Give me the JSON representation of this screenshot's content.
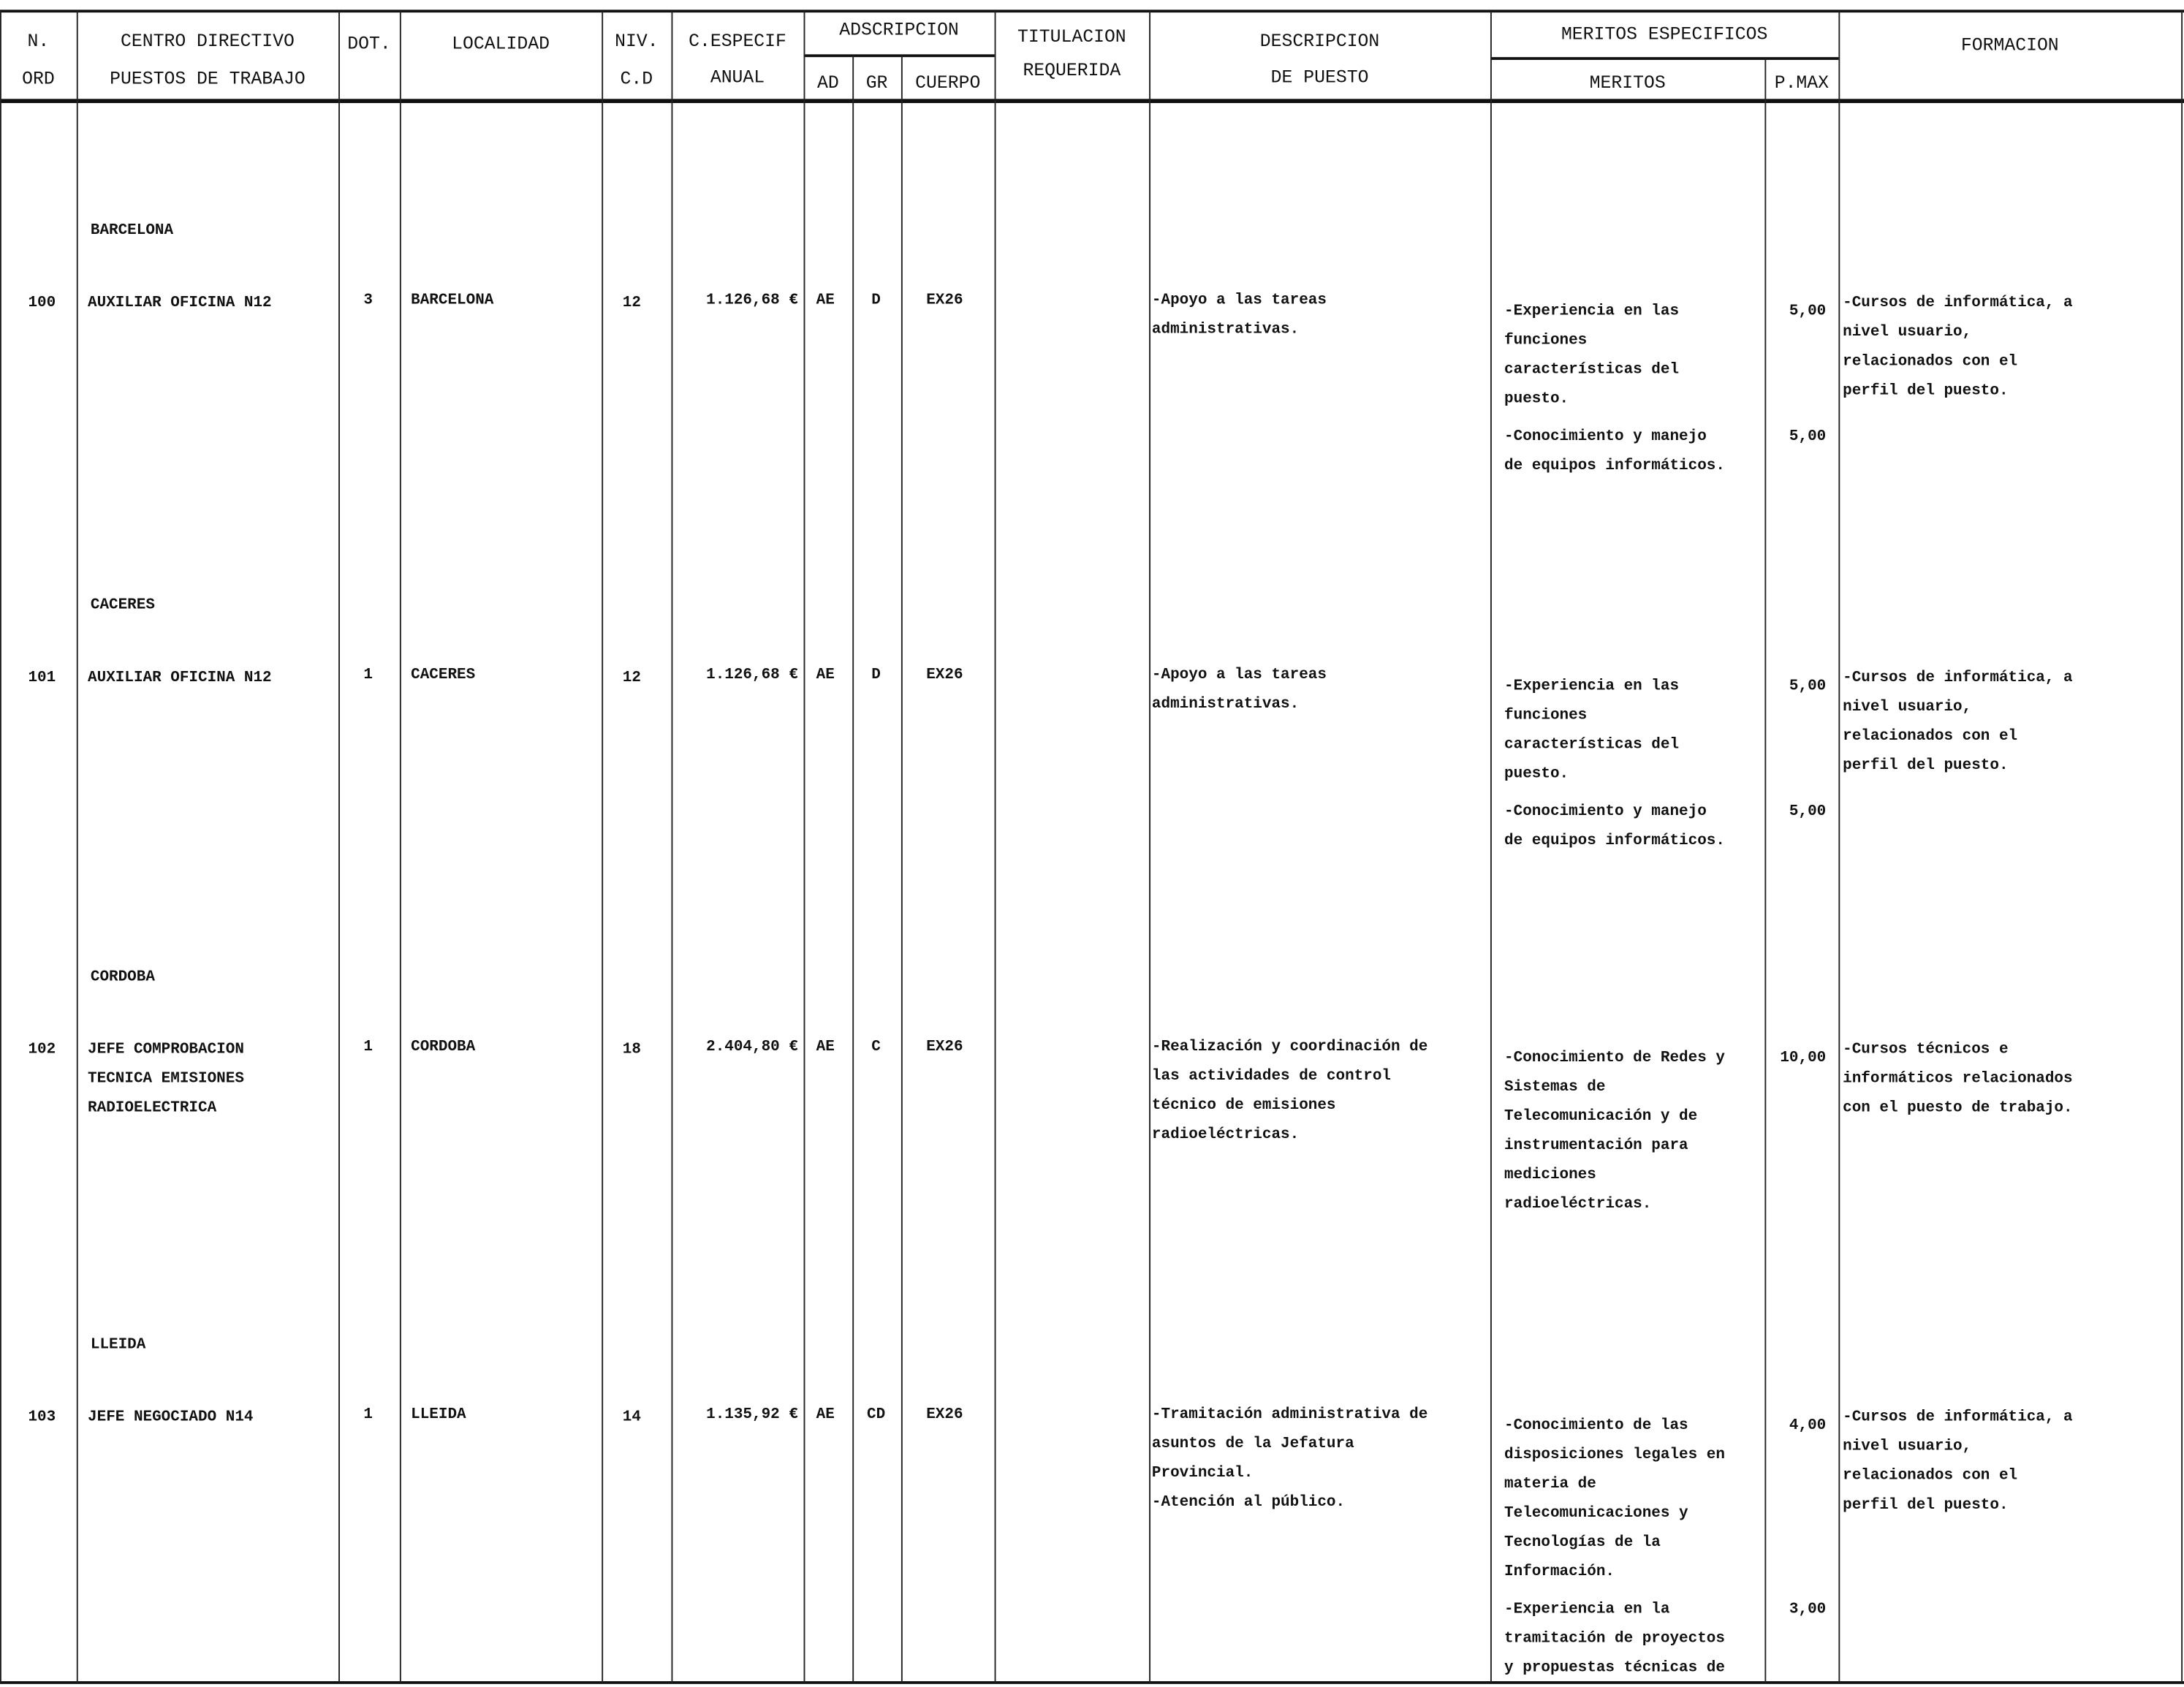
{
  "header": {
    "n_ord_1": "N.",
    "n_ord_2": "ORD",
    "centro_1": "CENTRO DIRECTIVO",
    "centro_2": "PUESTOS DE TRABAJO",
    "dot": "DOT.",
    "localidad": "LOCALIDAD",
    "niv_1": "NIV.",
    "niv_2": "C.D",
    "cesp_1": "C.ESPECIF",
    "cesp_2": "ANUAL",
    "adscripcion": "ADSCRIPCION",
    "ad": "AD",
    "gr": "GR",
    "cuerpo": "CUERPO",
    "titulacion_1": "TITULACION",
    "titulacion_2": "REQUERIDA",
    "descripcion_1": "DESCRIPCION",
    "descripcion_2": "DE PUESTO",
    "meritos_esp": "MERITOS ESPECIFICOS",
    "meritos": "MERITOS",
    "pmax": "P.MAX",
    "formacion": "FORMACION"
  },
  "rows": [
    {
      "province": "BARCELONA",
      "n": "100",
      "puesto": [
        "AUXILIAR OFICINA N12"
      ],
      "dot": "3",
      "localidad": "BARCELONA",
      "niv": "12",
      "cesp": "1.126,68 €",
      "ad": "AE",
      "gr": "D",
      "cuerpo": "EX26",
      "descripcion": [
        "-Apoyo a las tareas",
        "administrativas."
      ],
      "meritos": [
        {
          "lines": [
            "-Experiencia en las",
            "funciones",
            "características del",
            "puesto."
          ],
          "pmax": "5,00"
        },
        {
          "lines": [
            "-Conocimiento y manejo",
            "de equipos informáticos."
          ],
          "pmax": "5,00"
        }
      ],
      "formacion": [
        "-Cursos de informática, a",
        "nivel usuario,",
        "relacionados con el",
        "perfil del puesto."
      ]
    },
    {
      "province": "CACERES",
      "n": "101",
      "puesto": [
        "AUXILIAR OFICINA N12"
      ],
      "dot": "1",
      "localidad": "CACERES",
      "niv": "12",
      "cesp": "1.126,68 €",
      "ad": "AE",
      "gr": "D",
      "cuerpo": "EX26",
      "descripcion": [
        "-Apoyo a las tareas",
        "administrativas."
      ],
      "meritos": [
        {
          "lines": [
            "-Experiencia en las",
            "funciones",
            "características del",
            "puesto."
          ],
          "pmax": "5,00"
        },
        {
          "lines": [
            "-Conocimiento y manejo",
            "de equipos informáticos."
          ],
          "pmax": "5,00"
        }
      ],
      "formacion": [
        "-Cursos de informática, a",
        "nivel usuario,",
        "relacionados con el",
        "perfil del puesto."
      ]
    },
    {
      "province": "CORDOBA",
      "n": "102",
      "puesto": [
        "JEFE COMPROBACION",
        "TECNICA EMISIONES",
        "RADIOELECTRICA"
      ],
      "dot": "1",
      "localidad": "CORDOBA",
      "niv": "18",
      "cesp": "2.404,80 €",
      "ad": "AE",
      "gr": "C",
      "cuerpo": "EX26",
      "descripcion": [
        "-Realización y coordinación de",
        "las actividades de control",
        "técnico de emisiones",
        "radioeléctricas."
      ],
      "meritos": [
        {
          "lines": [
            "-Conocimiento de Redes y",
            "Sistemas de",
            "Telecomunicación y de",
            "instrumentación para",
            "mediciones",
            "radioeléctricas."
          ],
          "pmax": "10,00"
        }
      ],
      "formacion": [
        "-Cursos técnicos e",
        "informáticos relacionados",
        "con el puesto de trabajo."
      ]
    },
    {
      "province": "LLEIDA",
      "n": "103",
      "puesto": [
        "JEFE NEGOCIADO N14"
      ],
      "dot": "1",
      "localidad": "LLEIDA",
      "niv": "14",
      "cesp": "1.135,92 €",
      "ad": "AE",
      "gr": "CD",
      "cuerpo": "EX26",
      "descripcion": [
        "-Tramitación administrativa de",
        "asuntos de la Jefatura",
        "Provincial.",
        "-Atención al público."
      ],
      "meritos": [
        {
          "lines": [
            "-Conocimiento de las",
            "disposiciones legales en",
            "materia de",
            "Telecomunicaciones y",
            "Tecnologías de la",
            "Información."
          ],
          "pmax": "4,00"
        },
        {
          "lines": [
            "-Experiencia en la",
            "tramitación de proyectos",
            "y propuestas técnicas de"
          ],
          "pmax": "3,00"
        }
      ],
      "formacion": [
        "-Cursos de informática, a",
        "nivel usuario,",
        "relacionados con el",
        "perfil del puesto."
      ]
    }
  ]
}
